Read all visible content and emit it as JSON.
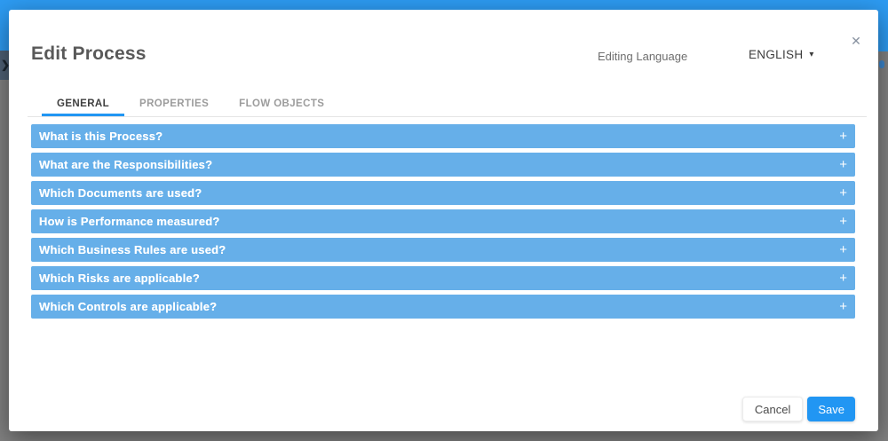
{
  "background": {
    "panel_toggle_icon": "❯"
  },
  "modal": {
    "title": "Edit Process",
    "editing_language_label": "Editing Language",
    "language_value": "ENGLISH",
    "language_caret": "▾",
    "close_icon": "✕"
  },
  "tabs": [
    {
      "label": "GENERAL",
      "active": true
    },
    {
      "label": "PROPERTIES",
      "active": false
    },
    {
      "label": "FLOW OBJECTS",
      "active": false
    }
  ],
  "accordion": {
    "expand_icon": "+",
    "sections": [
      "What is this Process?",
      "What are the Responsibilities?",
      "Which Documents are used?",
      "How is Performance measured?",
      "Which Business Rules are used?",
      "Which Risks are applicable?",
      "Which Controls are applicable?"
    ]
  },
  "footer": {
    "cancel_label": "Cancel",
    "save_label": "Save"
  },
  "colors": {
    "top_bar": "#2D9BF2",
    "accordion_header": "#66AFE9",
    "accent_blue": "#2196F3"
  }
}
